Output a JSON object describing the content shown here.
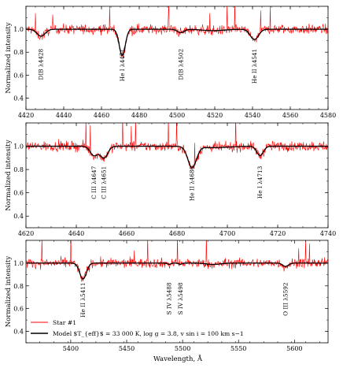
{
  "figure": {
    "ylabel": "Normalized intensity",
    "xlabel": "Wavelength, Å",
    "legend": [
      {
        "label": "Star #1",
        "color": "#ff0000"
      },
      {
        "label": "Model $T_{eff}$ = 33 000 K, log g = 3.8, v sin i = 100 km s−1",
        "color": "#000000"
      }
    ]
  },
  "chart_data": [
    {
      "type": "line",
      "xlim": [
        4420,
        4580
      ],
      "ylim": [
        0.3,
        1.2
      ],
      "xticks": [
        4420,
        4440,
        4460,
        4480,
        4500,
        4520,
        4540,
        4560,
        4580
      ],
      "yticks": [
        0.4,
        0.6,
        0.8,
        1.0
      ],
      "grid": false,
      "series": [
        {
          "name": "Star #1",
          "color": "#ff0000"
        },
        {
          "name": "Model",
          "color": "#000000"
        }
      ],
      "line_labels": [
        {
          "label": "DIB λ4428",
          "wavelength": 4428,
          "depth": 0.94,
          "width": 2.2
        },
        {
          "label": "He I λ4471",
          "wavelength": 4471,
          "depth": 0.77,
          "width": 1.6
        },
        {
          "label": "DIB λ4502",
          "wavelength": 4502,
          "depth": 0.97,
          "width": 1.8
        },
        {
          "label": "He II λ4541",
          "wavelength": 4541,
          "depth": 0.91,
          "width": 2.2
        }
      ]
    },
    {
      "type": "line",
      "xlim": [
        4620,
        4740
      ],
      "ylim": [
        0.3,
        1.2
      ],
      "xticks": [
        4620,
        4640,
        4660,
        4680,
        4700,
        4720,
        4740
      ],
      "yticks": [
        0.4,
        0.6,
        0.8,
        1.0
      ],
      "grid": false,
      "series": [
        {
          "name": "Star #1",
          "color": "#ff0000"
        },
        {
          "name": "Model",
          "color": "#000000"
        }
      ],
      "line_labels": [
        {
          "label": "C III λ4647",
          "wavelength": 4647,
          "depth": 0.92,
          "width": 1.5
        },
        {
          "label": "C III λ4651",
          "wavelength": 4651,
          "depth": 0.9,
          "width": 1.5
        },
        {
          "label": "He II λ4686",
          "wavelength": 4686,
          "depth": 0.82,
          "width": 1.7
        },
        {
          "label": "He I λ4713",
          "wavelength": 4713,
          "depth": 0.92,
          "width": 1.3
        }
      ]
    },
    {
      "type": "line",
      "xlim": [
        5360,
        5630
      ],
      "ylim": [
        0.3,
        1.2
      ],
      "xticks": [
        5400,
        5450,
        5500,
        5550,
        5600
      ],
      "yticks": [
        0.4,
        0.6,
        0.8,
        1.0
      ],
      "grid": false,
      "series": [
        {
          "name": "Star #1",
          "color": "#ff0000"
        },
        {
          "name": "Model",
          "color": "#000000"
        }
      ],
      "line_labels": [
        {
          "label": "He II λ5411",
          "wavelength": 5411,
          "depth": 0.86,
          "width": 3.0
        },
        {
          "label": "S IV λ5488",
          "wavelength": 5488,
          "depth": 0.99,
          "width": 1.5
        },
        {
          "label": "S IV λ5498",
          "wavelength": 5498,
          "depth": 0.99,
          "width": 1.5
        },
        {
          "label": "O III λ5592",
          "wavelength": 5592,
          "depth": 0.97,
          "width": 2.5
        }
      ]
    }
  ]
}
